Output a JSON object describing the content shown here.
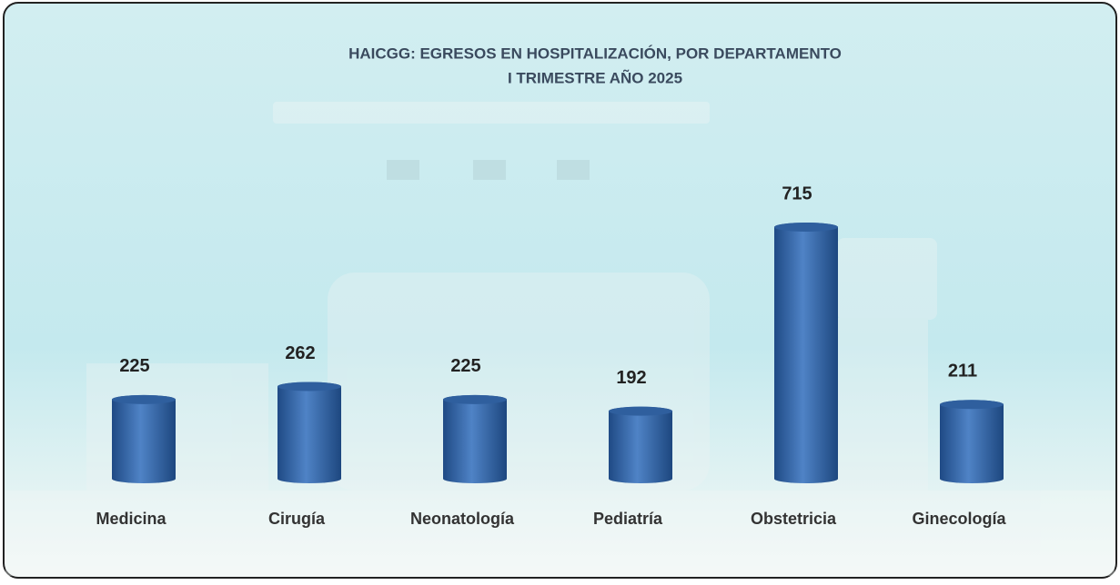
{
  "chart_data": {
    "type": "bar",
    "title": "HAICGG: EGRESOS  EN HOSPITALIZACIÓN,  POR DEPARTAMENTO",
    "subtitle": "I TRIMESTRE  AÑO 2025",
    "categories": [
      "Medicina",
      "Cirugía",
      "Neonatología",
      "Pediatría",
      "Obstetricia",
      "Ginecología"
    ],
    "values": [
      225,
      262,
      225,
      192,
      715,
      211
    ],
    "color": "#2f5f9e"
  }
}
